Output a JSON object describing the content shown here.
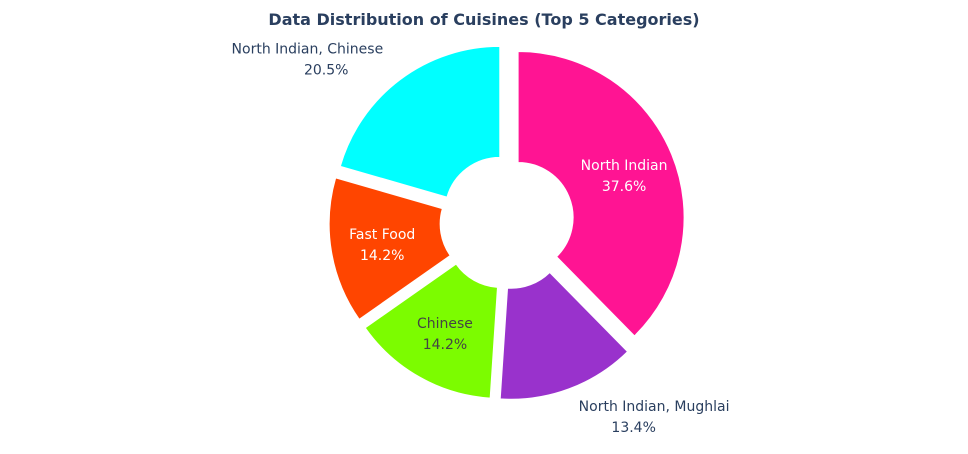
{
  "chart_data": {
    "type": "pie",
    "title": "Data Distribution of Cuisines (Top 5 Categories)",
    "hole": true,
    "slices": [
      {
        "label": "North Indian",
        "percent_label": "37.6%",
        "value": 37.6,
        "color": "#ff1493",
        "text_color": "#ffffff",
        "label_position": "inside"
      },
      {
        "label": "North Indian, Mughlai",
        "percent_label": "13.4%",
        "value": 13.4,
        "color": "#9932cc",
        "text_color": "#2a3f5f",
        "label_position": "outside"
      },
      {
        "label": "Chinese",
        "percent_label": "14.2%",
        "value": 14.2,
        "color": "#7cfc00",
        "text_color": "#444444",
        "label_position": "inside"
      },
      {
        "label": "Fast Food",
        "percent_label": "14.2%",
        "value": 14.2,
        "color": "#ff4500",
        "text_color": "#ffffff",
        "label_position": "inside"
      },
      {
        "label": "North Indian, Chinese",
        "percent_label": "20.5%",
        "value": 20.5,
        "color": "#00ffff",
        "text_color": "#2a3f5f",
        "label_position": "outside"
      }
    ]
  }
}
